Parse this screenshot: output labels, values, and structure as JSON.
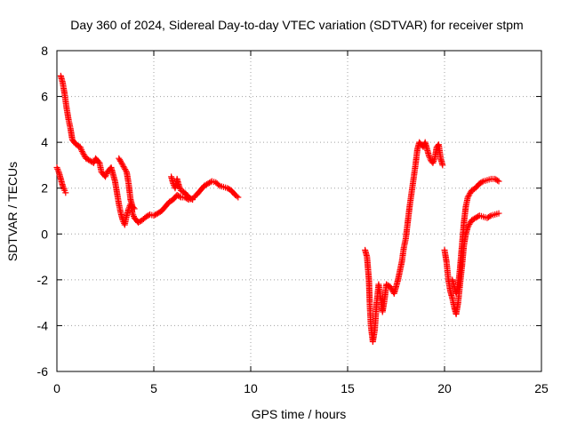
{
  "chart_data": {
    "type": "scatter",
    "title": "Day 360 of 2024, Sidereal Day-to-day VTEC variation (SDTVAR) for receiver stpm",
    "xlabel": "GPS time / hours",
    "ylabel": "SDTVAR / TECUs",
    "xlim": [
      0,
      25
    ],
    "ylim": [
      -6,
      8
    ],
    "xticks": [
      0,
      5,
      10,
      15,
      20,
      25
    ],
    "yticks": [
      -6,
      -4,
      -2,
      0,
      2,
      4,
      6,
      8
    ],
    "grid": true,
    "marker": "+",
    "series": [
      {
        "color": "#ff0000",
        "segments": [
          [
            [
              0.0,
              2.9
            ],
            [
              0.1,
              2.7
            ],
            [
              0.2,
              2.4
            ],
            [
              0.3,
              2.1
            ],
            [
              0.4,
              1.9
            ],
            [
              0.45,
              1.8
            ]
          ],
          [
            [
              0.2,
              6.9
            ],
            [
              0.3,
              6.6
            ],
            [
              0.4,
              6.1
            ],
            [
              0.5,
              5.5
            ],
            [
              0.6,
              5.0
            ],
            [
              0.7,
              4.6
            ],
            [
              0.8,
              4.1
            ],
            [
              1.0,
              3.9
            ],
            [
              1.2,
              3.8
            ],
            [
              1.3,
              3.6
            ],
            [
              1.5,
              3.3
            ],
            [
              1.7,
              3.2
            ],
            [
              1.9,
              3.1
            ],
            [
              2.0,
              3.3
            ],
            [
              2.2,
              3.1
            ],
            [
              2.3,
              2.7
            ],
            [
              2.5,
              2.5
            ],
            [
              2.6,
              2.7
            ],
            [
              2.8,
              2.9
            ],
            [
              2.9,
              2.6
            ],
            [
              3.0,
              2.3
            ],
            [
              3.1,
              1.8
            ],
            [
              3.2,
              1.3
            ],
            [
              3.3,
              0.9
            ],
            [
              3.4,
              0.6
            ],
            [
              3.5,
              0.4
            ],
            [
              3.6,
              0.8
            ],
            [
              3.7,
              1.1
            ],
            [
              3.8,
              1.3
            ],
            [
              3.9,
              0.9
            ],
            [
              4.0,
              0.7
            ],
            [
              4.2,
              0.5
            ],
            [
              4.4,
              0.6
            ],
            [
              4.6,
              0.75
            ],
            [
              4.8,
              0.85
            ],
            [
              5.0,
              0.8
            ],
            [
              5.2,
              0.9
            ],
            [
              5.4,
              1.0
            ],
            [
              5.6,
              1.2
            ],
            [
              5.8,
              1.4
            ],
            [
              6.0,
              1.5
            ],
            [
              6.2,
              1.7
            ],
            [
              6.4,
              1.6
            ],
            [
              6.6,
              1.6
            ],
            [
              6.8,
              1.5
            ],
            [
              7.0,
              1.55
            ],
            [
              7.2,
              1.7
            ],
            [
              7.4,
              1.9
            ],
            [
              7.6,
              2.1
            ],
            [
              7.8,
              2.2
            ],
            [
              8.0,
              2.3
            ],
            [
              8.2,
              2.25
            ],
            [
              8.4,
              2.1
            ],
            [
              8.6,
              2.05
            ],
            [
              8.8,
              2.0
            ],
            [
              9.0,
              1.9
            ],
            [
              9.2,
              1.7
            ],
            [
              9.35,
              1.6
            ]
          ],
          [
            [
              3.2,
              3.3
            ],
            [
              3.4,
              3.0
            ],
            [
              3.6,
              2.7
            ],
            [
              3.7,
              2.2
            ],
            [
              3.8,
              1.5
            ],
            [
              3.9,
              1.2
            ],
            [
              4.0,
              1.1
            ]
          ],
          [
            [
              5.9,
              2.5
            ],
            [
              6.0,
              2.2
            ],
            [
              6.1,
              2.0
            ],
            [
              6.2,
              2.4
            ],
            [
              6.3,
              2.1
            ],
            [
              6.4,
              1.9
            ],
            [
              6.6,
              1.8
            ],
            [
              6.8,
              1.6
            ],
            [
              7.0,
              1.5
            ]
          ],
          [
            [
              15.9,
              -0.7
            ],
            [
              16.0,
              -1.0
            ],
            [
              16.1,
              -2.0
            ],
            [
              16.15,
              -3.2
            ],
            [
              16.2,
              -4.0
            ],
            [
              16.3,
              -4.7
            ],
            [
              16.4,
              -4.2
            ],
            [
              16.5,
              -3.0
            ],
            [
              16.6,
              -2.2
            ],
            [
              16.7,
              -2.8
            ],
            [
              16.8,
              -3.4
            ],
            [
              16.9,
              -2.9
            ],
            [
              17.0,
              -2.2
            ],
            [
              17.2,
              -2.3
            ],
            [
              17.4,
              -2.6
            ],
            [
              17.6,
              -2.0
            ],
            [
              17.8,
              -1.2
            ],
            [
              17.9,
              -0.6
            ],
            [
              18.0,
              -0.2
            ],
            [
              18.1,
              0.5
            ],
            [
              18.2,
              1.2
            ],
            [
              18.3,
              1.8
            ],
            [
              18.4,
              2.4
            ],
            [
              18.5,
              3.0
            ],
            [
              18.6,
              3.7
            ],
            [
              18.7,
              4.0
            ],
            [
              18.8,
              3.9
            ],
            [
              18.9,
              3.8
            ],
            [
              19.0,
              4.0
            ],
            [
              19.1,
              3.7
            ],
            [
              19.2,
              3.4
            ],
            [
              19.3,
              3.2
            ],
            [
              19.4,
              3.1
            ],
            [
              19.5,
              3.3
            ],
            [
              19.6,
              3.8
            ],
            [
              19.7,
              3.9
            ],
            [
              19.8,
              3.3
            ],
            [
              19.9,
              3.0
            ]
          ],
          [
            [
              20.0,
              -0.7
            ],
            [
              20.1,
              -1.2
            ],
            [
              20.2,
              -2.0
            ],
            [
              20.3,
              -2.5
            ],
            [
              20.4,
              -2.8
            ],
            [
              20.5,
              -3.2
            ],
            [
              20.6,
              -3.5
            ],
            [
              20.7,
              -3.0
            ],
            [
              20.8,
              -2.2
            ],
            [
              20.9,
              -1.4
            ],
            [
              21.0,
              -0.5
            ],
            [
              21.1,
              0.0
            ],
            [
              21.2,
              0.3
            ],
            [
              21.4,
              0.6
            ],
            [
              21.6,
              0.7
            ],
            [
              21.8,
              0.8
            ],
            [
              22.0,
              0.75
            ],
            [
              22.2,
              0.7
            ],
            [
              22.4,
              0.8
            ],
            [
              22.6,
              0.85
            ],
            [
              22.8,
              0.9
            ]
          ],
          [
            [
              20.4,
              -2.0
            ],
            [
              20.6,
              -2.6
            ],
            [
              20.7,
              -2.3
            ],
            [
              20.8,
              -1.5
            ],
            [
              20.9,
              -0.5
            ],
            [
              21.0,
              0.5
            ],
            [
              21.1,
              1.2
            ],
            [
              21.2,
              1.6
            ],
            [
              21.4,
              1.9
            ],
            [
              21.6,
              2.0
            ],
            [
              21.8,
              2.2
            ],
            [
              22.0,
              2.3
            ],
            [
              22.2,
              2.35
            ],
            [
              22.4,
              2.4
            ],
            [
              22.6,
              2.4
            ],
            [
              22.8,
              2.3
            ]
          ]
        ]
      }
    ]
  }
}
